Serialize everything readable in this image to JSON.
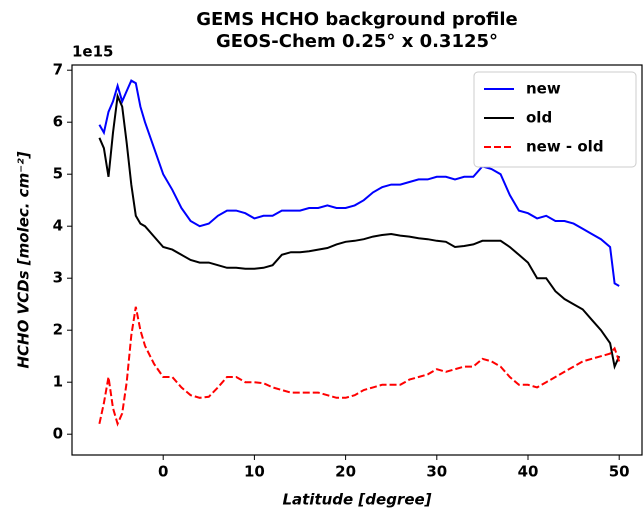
{
  "chart_data": {
    "type": "line",
    "title": "GEMS HCHO background profile",
    "subtitle": "GEOS-Chem 0.25° x 0.3125°",
    "x_label": "Latitude [degree]",
    "y_label": "HCHO VCDs [molec. cm⁻²]",
    "y_offset_label": "1e15",
    "x": [
      -7,
      -6.5,
      -6,
      -5.5,
      -5,
      -4.5,
      -4,
      -3.5,
      -3,
      -2.5,
      -2,
      -1,
      0,
      1,
      2,
      3,
      4,
      5,
      6,
      7,
      8,
      9,
      10,
      11,
      12,
      13,
      14,
      15,
      16,
      17,
      18,
      19,
      20,
      21,
      22,
      23,
      24,
      25,
      26,
      27,
      28,
      29,
      30,
      31,
      32,
      33,
      34,
      35,
      36,
      37,
      38,
      39,
      40,
      41,
      42,
      43,
      44,
      45,
      46,
      47,
      48,
      49,
      49.5,
      50
    ],
    "series": [
      {
        "name": "new",
        "color": "#0000ff",
        "dash": false,
        "values": [
          5.95,
          5.8,
          6.2,
          6.4,
          6.7,
          6.4,
          6.6,
          6.8,
          6.75,
          6.3,
          6.0,
          5.5,
          5.0,
          4.7,
          4.35,
          4.1,
          4.0,
          4.05,
          4.2,
          4.3,
          4.3,
          4.25,
          4.15,
          4.2,
          4.2,
          4.3,
          4.3,
          4.3,
          4.35,
          4.35,
          4.4,
          4.35,
          4.35,
          4.4,
          4.5,
          4.65,
          4.75,
          4.8,
          4.8,
          4.85,
          4.9,
          4.9,
          4.95,
          4.95,
          4.9,
          4.95,
          4.95,
          5.15,
          5.1,
          5.0,
          4.6,
          4.3,
          4.25,
          4.15,
          4.2,
          4.1,
          4.1,
          4.05,
          3.95,
          3.85,
          3.75,
          3.6,
          2.9,
          2.85
        ]
      },
      {
        "name": "old",
        "color": "#000000",
        "dash": false,
        "values": [
          5.7,
          5.5,
          4.95,
          5.8,
          6.5,
          6.3,
          5.6,
          4.8,
          4.2,
          4.05,
          4.0,
          3.8,
          3.6,
          3.55,
          3.45,
          3.35,
          3.3,
          3.3,
          3.25,
          3.2,
          3.2,
          3.18,
          3.18,
          3.2,
          3.25,
          3.45,
          3.5,
          3.5,
          3.52,
          3.55,
          3.58,
          3.65,
          3.7,
          3.72,
          3.75,
          3.8,
          3.83,
          3.85,
          3.82,
          3.8,
          3.77,
          3.75,
          3.72,
          3.7,
          3.6,
          3.62,
          3.65,
          3.72,
          3.72,
          3.72,
          3.6,
          3.45,
          3.3,
          3.0,
          3.0,
          2.75,
          2.6,
          2.5,
          2.4,
          2.2,
          2.0,
          1.75,
          1.3,
          1.5
        ]
      },
      {
        "name": "new - old",
        "color": "#ff0000",
        "dash": true,
        "values": [
          0.2,
          0.6,
          1.1,
          0.5,
          0.2,
          0.4,
          1.0,
          1.9,
          2.45,
          2.0,
          1.7,
          1.35,
          1.1,
          1.1,
          0.9,
          0.75,
          0.7,
          0.72,
          0.9,
          1.1,
          1.1,
          1.0,
          1.0,
          0.98,
          0.9,
          0.85,
          0.8,
          0.8,
          0.8,
          0.8,
          0.75,
          0.7,
          0.7,
          0.75,
          0.85,
          0.9,
          0.95,
          0.95,
          0.95,
          1.05,
          1.1,
          1.15,
          1.25,
          1.2,
          1.25,
          1.3,
          1.3,
          1.45,
          1.4,
          1.3,
          1.1,
          0.95,
          0.95,
          0.9,
          1.0,
          1.1,
          1.2,
          1.3,
          1.4,
          1.45,
          1.5,
          1.55,
          1.65,
          1.4
        ]
      }
    ],
    "xlim": [
      -10,
      52.5
    ],
    "ylim": [
      -0.4,
      7.1
    ],
    "xticks": [
      0,
      10,
      20,
      30,
      40,
      50
    ],
    "yticks": [
      0,
      1,
      2,
      3,
      4,
      5,
      6,
      7
    ],
    "legend": "upper right"
  }
}
